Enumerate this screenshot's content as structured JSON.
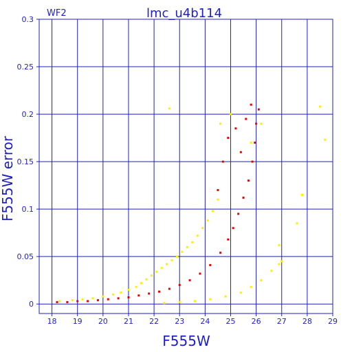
{
  "chart_data": {
    "type": "scatter",
    "title": "lmc_u4b114",
    "chip_label": "WF2",
    "xlabel": "F555W",
    "ylabel": "F555W error",
    "xlim": [
      17.5,
      29
    ],
    "ylim": [
      -0.01,
      0.3
    ],
    "grid": true,
    "x_ticks": [
      18,
      19,
      20,
      21,
      22,
      23,
      24,
      25,
      26,
      27,
      28,
      29
    ],
    "y_ticks": [
      0,
      0.05,
      0.1,
      0.15,
      0.2,
      0.25,
      0.3
    ],
    "y_tick_labels": [
      "0",
      "0.05",
      "0.1",
      "0.15",
      "0.2",
      "0.25",
      "0.3"
    ],
    "colors": {
      "axis": "#1e1ec8",
      "series_red": "#ee0000",
      "series_yellow": "#ffee00"
    },
    "series": [
      {
        "color": "yellow",
        "points": [
          [
            18.3,
            0.003
          ],
          [
            18.8,
            0.004
          ],
          [
            19.2,
            0.005
          ],
          [
            19.6,
            0.006
          ],
          [
            20.0,
            0.008
          ],
          [
            20.4,
            0.01
          ],
          [
            20.7,
            0.012
          ],
          [
            21.0,
            0.015
          ],
          [
            21.3,
            0.018
          ],
          [
            21.5,
            0.022
          ],
          [
            21.7,
            0.026
          ],
          [
            21.9,
            0.03
          ],
          [
            22.1,
            0.034
          ],
          [
            22.3,
            0.038
          ],
          [
            22.5,
            0.042
          ],
          [
            22.7,
            0.046
          ],
          [
            22.9,
            0.05
          ],
          [
            23.1,
            0.055
          ],
          [
            23.3,
            0.06
          ],
          [
            23.5,
            0.065
          ],
          [
            23.7,
            0.072
          ],
          [
            23.9,
            0.08
          ],
          [
            24.1,
            0.088
          ],
          [
            24.3,
            0.098
          ],
          [
            24.5,
            0.11
          ],
          [
            22.6,
            0.206
          ],
          [
            24.6,
            0.19
          ],
          [
            25.0,
            0.2
          ],
          [
            25.8,
            0.17
          ],
          [
            26.2,
            0.19
          ],
          [
            26.9,
            0.062
          ],
          [
            27.6,
            0.085
          ],
          [
            27.8,
            0.115
          ],
          [
            28.5,
            0.208
          ],
          [
            28.7,
            0.173
          ],
          [
            22.4,
            0.001
          ],
          [
            23.0,
            0.002
          ],
          [
            23.6,
            0.003
          ],
          [
            24.2,
            0.005
          ],
          [
            24.8,
            0.008
          ],
          [
            25.4,
            0.012
          ],
          [
            25.8,
            0.018
          ],
          [
            26.2,
            0.025
          ],
          [
            26.6,
            0.035
          ],
          [
            26.9,
            0.042
          ],
          [
            27.0,
            0.045
          ]
        ]
      },
      {
        "color": "red",
        "points": [
          [
            18.2,
            0.002
          ],
          [
            18.6,
            0.002
          ],
          [
            19.0,
            0.003
          ],
          [
            19.4,
            0.003
          ],
          [
            19.8,
            0.004
          ],
          [
            20.2,
            0.005
          ],
          [
            20.6,
            0.006
          ],
          [
            21.0,
            0.007
          ],
          [
            21.4,
            0.009
          ],
          [
            21.8,
            0.011
          ],
          [
            22.2,
            0.013
          ],
          [
            22.6,
            0.016
          ],
          [
            23.0,
            0.02
          ],
          [
            23.4,
            0.025
          ],
          [
            23.8,
            0.032
          ],
          [
            24.2,
            0.041
          ],
          [
            24.6,
            0.054
          ],
          [
            24.9,
            0.068
          ],
          [
            25.1,
            0.08
          ],
          [
            25.3,
            0.095
          ],
          [
            25.5,
            0.112
          ],
          [
            25.7,
            0.13
          ],
          [
            25.85,
            0.15
          ],
          [
            25.95,
            0.17
          ],
          [
            26.0,
            0.19
          ],
          [
            25.8,
            0.21
          ],
          [
            26.1,
            0.205
          ],
          [
            25.6,
            0.195
          ],
          [
            25.2,
            0.185
          ],
          [
            24.9,
            0.175
          ],
          [
            25.4,
            0.16
          ],
          [
            24.7,
            0.15
          ],
          [
            24.5,
            0.12
          ]
        ]
      }
    ]
  }
}
